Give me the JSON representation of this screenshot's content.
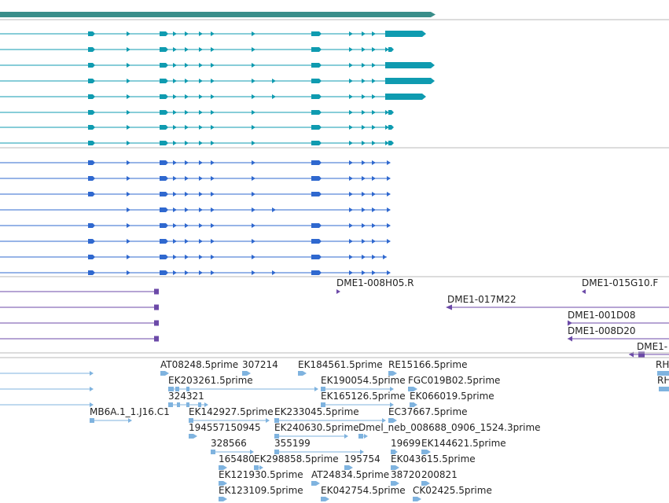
{
  "colors": {
    "background": "#ffffff",
    "separator": "#b8b8b8",
    "track_gene_summary": "#3a8e8a",
    "track_transcripts": "#0f9bb0",
    "track_cds": "#2f68cf",
    "track_clones": "#6c4aa8",
    "track_ests": "#7fb3df"
  },
  "tracks": {
    "gene_summary": {
      "name": "gene-summary-track"
    },
    "transcripts": {
      "name": "transcripts-track",
      "row_count": 8
    },
    "cds": {
      "name": "cds-track",
      "row_count": 8
    },
    "clones": {
      "name": "clones-track",
      "labels": [
        {
          "text": "DME1-008H05.R"
        },
        {
          "text": "DME1-015G10.F"
        },
        {
          "text": "DME1-017M22"
        },
        {
          "text": "DME1-001D08"
        },
        {
          "text": "DME1-008D20"
        },
        {
          "text": "DME1-"
        }
      ]
    },
    "ests": {
      "name": "ests-track",
      "labels": [
        {
          "text": "AT08248.5prime"
        },
        {
          "text": "307214"
        },
        {
          "text": "EK184561.5prime"
        },
        {
          "text": "RE15166.5prime"
        },
        {
          "text": "RH"
        },
        {
          "text": "EK203261.5prime"
        },
        {
          "text": "EK190054.5prime"
        },
        {
          "text": "FGC019B02.5prime"
        },
        {
          "text": "RH"
        },
        {
          "text": "324321"
        },
        {
          "text": "EK165126.5prime"
        },
        {
          "text": "EK066019.5prime"
        },
        {
          "text": "MB6A.1_1.J16.C1"
        },
        {
          "text": "EK142927.5prime"
        },
        {
          "text": "EK233045.5prime"
        },
        {
          "text": "EC37667.5prime"
        },
        {
          "text": "194557150945"
        },
        {
          "text": "EK240630.5prime"
        },
        {
          "text": "Dmel_neb_008688_0906_1524.3prime"
        },
        {
          "text": "328566"
        },
        {
          "text": "355199"
        },
        {
          "text": "19699"
        },
        {
          "text": "EK144621.5prime"
        },
        {
          "text": "165480"
        },
        {
          "text": "EK298858.5prime"
        },
        {
          "text": "195754"
        },
        {
          "text": "EK043615.5prime"
        },
        {
          "text": "EK121930.5prime"
        },
        {
          "text": "AT24834.5prime"
        },
        {
          "text": "38720"
        },
        {
          "text": "200821"
        },
        {
          "text": "EK123109.5prime"
        },
        {
          "text": "EK042754.5prime"
        },
        {
          "text": "CK02425.5prime"
        }
      ]
    }
  }
}
